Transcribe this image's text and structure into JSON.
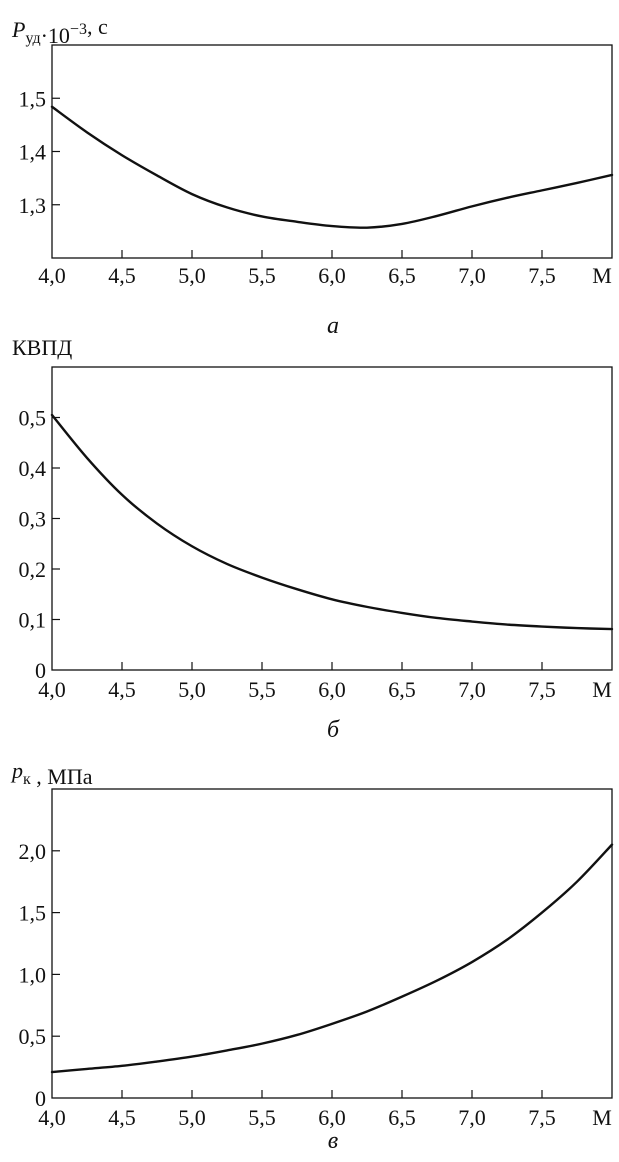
{
  "chart_data": [
    {
      "type": "line",
      "ylabel": {
        "symbol": "P",
        "sub": "уд",
        "rest": "·10",
        "sup": "−3",
        "tail": ", с"
      },
      "xlabel": "М",
      "subtitle": "а",
      "xlim": [
        4.0,
        8.0
      ],
      "ylim": [
        1.2,
        1.6
      ],
      "x_ticks": [
        4.0,
        4.5,
        5.0,
        5.5,
        6.0,
        6.5,
        7.0,
        7.5
      ],
      "x_tick_labels": [
        "4,0",
        "4,5",
        "5,0",
        "5,5",
        "6,0",
        "6,5",
        "7,0",
        "7,5"
      ],
      "y_ticks": [
        1.3,
        1.4,
        1.5
      ],
      "y_tick_labels": [
        "1,3",
        "1,4",
        "1,5"
      ],
      "series": [
        {
          "x": [
            4.0,
            4.25,
            4.5,
            4.75,
            5.0,
            5.25,
            5.5,
            5.75,
            6.0,
            6.25,
            6.5,
            6.75,
            7.0,
            7.25,
            7.5,
            7.75,
            8.0
          ],
          "y": [
            1.484,
            1.436,
            1.393,
            1.355,
            1.32,
            1.295,
            1.278,
            1.268,
            1.26,
            1.257,
            1.264,
            1.279,
            1.297,
            1.313,
            1.327,
            1.341,
            1.356
          ]
        }
      ]
    },
    {
      "type": "line",
      "ylabel": {
        "symbol": "",
        "sub": "",
        "rest": "КВПД",
        "sup": "",
        "tail": ""
      },
      "xlabel": "М",
      "subtitle": "б",
      "xlim": [
        4.0,
        8.0
      ],
      "ylim": [
        0,
        0.6
      ],
      "x_ticks": [
        4.0,
        4.5,
        5.0,
        5.5,
        6.0,
        6.5,
        7.0,
        7.5
      ],
      "x_tick_labels": [
        "4,0",
        "4,5",
        "5,0",
        "5,5",
        "6,0",
        "6,5",
        "7,0",
        "7,5"
      ],
      "y_ticks": [
        0,
        0.1,
        0.2,
        0.3,
        0.4,
        0.5
      ],
      "y_tick_labels": [
        "0",
        "0,1",
        "0,2",
        "0,3",
        "0,4",
        "0,5"
      ],
      "series": [
        {
          "x": [
            4.0,
            4.25,
            4.5,
            4.75,
            5.0,
            5.25,
            5.5,
            5.75,
            6.0,
            6.25,
            6.5,
            6.75,
            7.0,
            7.25,
            7.5,
            7.75,
            8.0
          ],
          "y": [
            0.505,
            0.42,
            0.347,
            0.29,
            0.245,
            0.21,
            0.183,
            0.16,
            0.14,
            0.125,
            0.113,
            0.103,
            0.096,
            0.09,
            0.086,
            0.083,
            0.081
          ]
        }
      ]
    },
    {
      "type": "line",
      "ylabel": {
        "symbol": "p",
        "sub": "к",
        "rest": "",
        "sup": "",
        "tail": " , МПа"
      },
      "xlabel": "М",
      "subtitle": "в",
      "xlim": [
        4.0,
        8.0
      ],
      "ylim": [
        0,
        2.5
      ],
      "x_ticks": [
        4.0,
        4.5,
        5.0,
        5.5,
        6.0,
        6.5,
        7.0,
        7.5
      ],
      "x_tick_labels": [
        "4,0",
        "4,5",
        "5,0",
        "5,5",
        "6,0",
        "6,5",
        "7,0",
        "7,5"
      ],
      "y_ticks": [
        0,
        0.5,
        1.0,
        1.5,
        2.0
      ],
      "y_tick_labels": [
        "0",
        "0,5",
        "1,0",
        "1,5",
        "2,0"
      ],
      "series": [
        {
          "x": [
            4.0,
            4.25,
            4.5,
            4.75,
            5.0,
            5.25,
            5.5,
            5.75,
            6.0,
            6.25,
            6.5,
            6.75,
            7.0,
            7.25,
            7.5,
            7.75,
            8.0
          ],
          "y": [
            0.21,
            0.235,
            0.26,
            0.295,
            0.335,
            0.385,
            0.44,
            0.51,
            0.6,
            0.7,
            0.82,
            0.95,
            1.1,
            1.28,
            1.5,
            1.75,
            2.05
          ]
        }
      ]
    }
  ]
}
